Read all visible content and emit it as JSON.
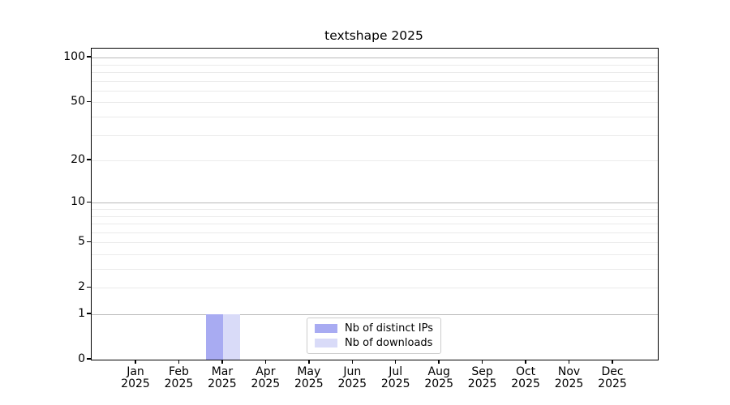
{
  "chart_data": {
    "type": "bar",
    "title": "textshape 2025",
    "categories": [
      "Jan 2025",
      "Feb 2025",
      "Mar 2025",
      "Apr 2025",
      "May 2025",
      "Jun 2025",
      "Jul 2025",
      "Aug 2025",
      "Sep 2025",
      "Oct 2025",
      "Nov 2025",
      "Dec 2025"
    ],
    "series": [
      {
        "name": "Nb of distinct IPs",
        "color": "#a8abf2",
        "values": [
          0,
          0,
          1,
          0,
          0,
          0,
          0,
          0,
          0,
          0,
          0,
          0
        ]
      },
      {
        "name": "Nb of downloads",
        "color": "#d9dbf8",
        "values": [
          0,
          0,
          1,
          0,
          0,
          0,
          0,
          0,
          0,
          0,
          0,
          0
        ]
      }
    ],
    "y_axis": {
      "scale": "log1p",
      "max": 115,
      "labeled_ticks": [
        0,
        1,
        2,
        5,
        10,
        20,
        50,
        100
      ],
      "major_gridlines": [
        1,
        10,
        100
      ],
      "minor_gridlines": [
        2,
        3,
        4,
        5,
        6,
        7,
        8,
        9,
        20,
        30,
        40,
        50,
        60,
        70,
        80,
        90
      ]
    },
    "legend_position": "bottom-center",
    "grid": true,
    "colors": {
      "major_grid": "#b9b9b9",
      "minor_grid": "#ebebeb",
      "spine": "#000000",
      "background": "#ffffff"
    }
  }
}
